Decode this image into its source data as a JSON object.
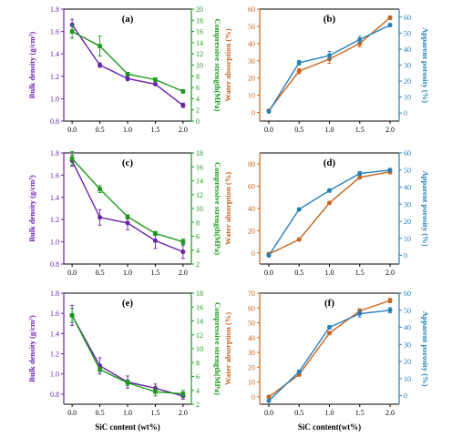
{
  "colors": {
    "bulk_density": "#6a1fb0",
    "compressive_strength": "#1a9a1a",
    "water_absorption": "#c8641e",
    "apparent_porosity": "#2680b8",
    "axis": "#000000"
  },
  "chart_data": [
    {
      "type": "line",
      "panel_label": "(a)",
      "x": [
        0.0,
        0.5,
        1.0,
        1.5,
        2.0
      ],
      "x_ticks": [
        "0.0",
        "0.5",
        "1.0",
        "1.5",
        "2.0"
      ],
      "xlim": [
        -0.15,
        2.15
      ],
      "xlabel": "",
      "ylabel_left": "Bulk density (g/cm³)",
      "ylabel_right": "Compressive strength(MPa)",
      "ylim_left": [
        0.8,
        1.8
      ],
      "ylim_right": [
        0,
        20
      ],
      "yticks_left": [
        "0.8",
        "1.0",
        "1.2",
        "1.4",
        "1.6",
        "1.8"
      ],
      "yticks_right": [
        "0",
        "2",
        "4",
        "6",
        "8",
        "10",
        "12",
        "14",
        "16",
        "18",
        "20"
      ],
      "series": [
        {
          "axis": "left",
          "color_key": "bulk_density",
          "marker": "circle",
          "values": [
            1.66,
            1.3,
            1.18,
            1.13,
            0.94
          ],
          "errors": [
            0.05,
            0.02,
            0.02,
            0.01,
            0.02
          ]
        },
        {
          "axis": "right",
          "color_key": "compressive_strength",
          "marker": "square",
          "values": [
            16.0,
            13.4,
            8.4,
            7.4,
            5.3
          ],
          "errors": [
            1.2,
            1.8,
            0.3,
            0.3,
            0.3
          ]
        }
      ]
    },
    {
      "type": "line",
      "panel_label": "(b)",
      "x": [
        0.0,
        0.5,
        1.0,
        1.5,
        2.0
      ],
      "x_ticks": [
        "0.0",
        "0.5",
        "1.0",
        "1.5",
        "2.0"
      ],
      "xlim": [
        -0.15,
        2.15
      ],
      "xlabel": "",
      "ylabel_left": "Water absorption (%)",
      "ylabel_right": "Apparent porosity (%)",
      "ylim_left": [
        -5,
        60
      ],
      "ylim_right": [
        -5,
        65
      ],
      "yticks_left": [
        "0",
        "10",
        "20",
        "30",
        "40",
        "50",
        "60"
      ],
      "yticks_right": [
        "0",
        "10",
        "20",
        "30",
        "40",
        "50",
        "60"
      ],
      "series": [
        {
          "axis": "left",
          "color_key": "water_absorption",
          "marker": "circle",
          "values": [
            1,
            24,
            31,
            40,
            55
          ],
          "errors": [
            0.5,
            1.5,
            2.5,
            2.0,
            1.0
          ]
        },
        {
          "axis": "right",
          "color_key": "apparent_porosity",
          "marker": "circle",
          "values": [
            1,
            31.5,
            36,
            46,
            55
          ],
          "errors": [
            0.5,
            1.5,
            2.5,
            2.0,
            1.0
          ]
        }
      ]
    },
    {
      "type": "line",
      "panel_label": "(c)",
      "x": [
        0.0,
        0.5,
        1.0,
        1.5,
        2.0
      ],
      "x_ticks": [
        "0.0",
        "0.5",
        "1.0",
        "1.5",
        "2.0"
      ],
      "xlim": [
        -0.15,
        2.15
      ],
      "xlabel": "",
      "ylabel_left": "Bulk density (g/cm³)",
      "ylabel_right": "Compressive strength(MPa)",
      "ylim_left": [
        0.8,
        1.8
      ],
      "ylim_right": [
        2,
        18
      ],
      "yticks_left": [
        "0.8",
        "1.0",
        "1.2",
        "1.4",
        "1.6",
        "1.8"
      ],
      "yticks_right": [
        "2",
        "4",
        "6",
        "8",
        "10",
        "12",
        "14",
        "16",
        "18"
      ],
      "series": [
        {
          "axis": "left",
          "color_key": "bulk_density",
          "marker": "circle",
          "values": [
            1.73,
            1.22,
            1.17,
            1.01,
            0.91
          ],
          "errors": [
            0.05,
            0.07,
            0.06,
            0.07,
            0.06
          ]
        },
        {
          "axis": "right",
          "color_key": "compressive_strength",
          "marker": "square",
          "values": [
            17.2,
            12.8,
            8.8,
            6.4,
            5.2
          ],
          "errors": [
            1.0,
            0.5,
            0.3,
            0.3,
            0.4
          ]
        }
      ]
    },
    {
      "type": "line",
      "panel_label": "(d)",
      "x": [
        0.0,
        0.5,
        1.0,
        1.5,
        2.0
      ],
      "x_ticks": [
        "0.0",
        "0.5",
        "1.0",
        "1.5",
        "2.0"
      ],
      "xlim": [
        -0.15,
        2.15
      ],
      "xlabel": "",
      "ylabel_left": "Water absorption (%)",
      "ylabel_right": "Apparent porosity (%)",
      "ylim_left": [
        -10,
        90
      ],
      "ylim_right": [
        -5,
        60
      ],
      "yticks_left": [
        "0",
        "20",
        "40",
        "60",
        "80"
      ],
      "yticks_right": [
        "0",
        "10",
        "20",
        "30",
        "40",
        "50",
        "60"
      ],
      "series": [
        {
          "axis": "left",
          "color_key": "water_absorption",
          "marker": "circle",
          "values": [
            -1,
            12,
            45,
            68,
            73
          ],
          "errors": [
            0.8,
            0.8,
            1.0,
            1.5,
            2.0
          ]
        },
        {
          "axis": "right",
          "color_key": "apparent_porosity",
          "marker": "circle",
          "values": [
            0,
            27,
            38,
            48,
            50
          ],
          "errors": [
            0.8,
            0.8,
            1.0,
            1.2,
            1.0
          ]
        }
      ]
    },
    {
      "type": "line",
      "panel_label": "(e)",
      "x": [
        0.0,
        0.5,
        1.0,
        1.5,
        2.0
      ],
      "x_ticks": [
        "0.0",
        "0.5",
        "1.0",
        "1.5",
        "2.0"
      ],
      "xlim": [
        -0.15,
        2.15
      ],
      "xlabel": "SiC content (wt%)",
      "ylabel_left": "Bulk density (g/cm³)",
      "ylabel_right": "Compressive strength(MPa)",
      "ylim_left": [
        0.7,
        1.8
      ],
      "ylim_right": [
        2,
        18
      ],
      "yticks_left": [
        "0.8",
        "1.0",
        "1.2",
        "1.4",
        "1.6",
        "1.8"
      ],
      "yticks_right": [
        "2",
        "4",
        "6",
        "8",
        "10",
        "12",
        "14",
        "16",
        "18"
      ],
      "series": [
        {
          "axis": "left",
          "color_key": "bulk_density",
          "marker": "circle",
          "values": [
            1.58,
            1.08,
            0.92,
            0.86,
            0.78
          ],
          "errors": [
            0.1,
            0.08,
            0.06,
            0.04,
            0.03
          ]
        },
        {
          "axis": "right",
          "color_key": "compressive_strength",
          "marker": "square",
          "values": [
            14.8,
            7.0,
            5.1,
            3.8,
            3.5
          ],
          "errors": [
            1.0,
            0.3,
            0.4,
            0.6,
            0.5
          ]
        }
      ]
    },
    {
      "type": "line",
      "panel_label": "(f)",
      "x": [
        0.0,
        0.5,
        1.0,
        1.5,
        2.0
      ],
      "x_ticks": [
        "0.0",
        "0.5",
        "1.0",
        "1.5",
        "2.0"
      ],
      "xlim": [
        -0.15,
        2.15
      ],
      "xlabel": "SiC content(wt%)",
      "ylabel_left": "Water absorption (%)",
      "ylabel_right": "Apparent porosity (%)",
      "ylim_left": [
        -5,
        70
      ],
      "ylim_right": [
        -5,
        60
      ],
      "yticks_left": [
        "0",
        "10",
        "20",
        "30",
        "40",
        "50",
        "60",
        "70"
      ],
      "yticks_right": [
        "0",
        "10",
        "20",
        "30",
        "40",
        "50",
        "60"
      ],
      "series": [
        {
          "axis": "left",
          "color_key": "water_absorption",
          "marker": "circle",
          "values": [
            0,
            15,
            43,
            58,
            65
          ],
          "errors": [
            0.5,
            1.0,
            1.0,
            1.5,
            1.5
          ]
        },
        {
          "axis": "right",
          "color_key": "apparent_porosity",
          "marker": "circle",
          "values": [
            -3,
            14,
            40,
            48,
            50
          ],
          "errors": [
            0.5,
            1.0,
            1.0,
            2.0,
            1.5
          ]
        }
      ]
    }
  ]
}
